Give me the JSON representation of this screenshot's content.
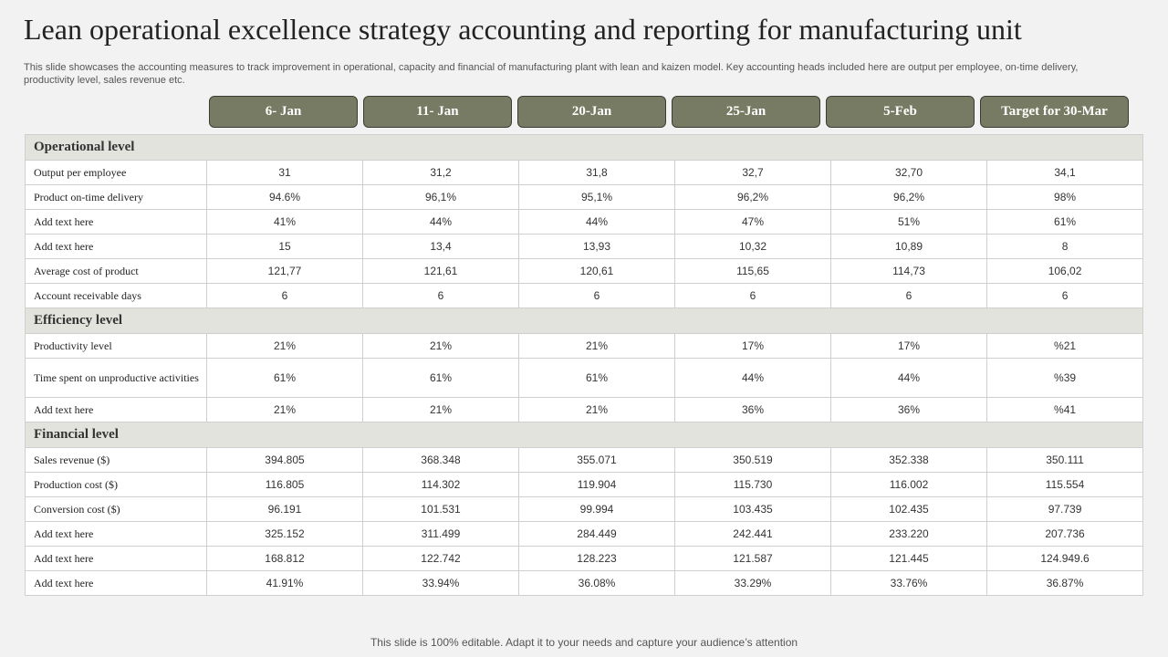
{
  "title": "Lean operational excellence strategy accounting and reporting for manufacturing unit",
  "subtitle": "This slide showcases the accounting measures to track improvement in operational, capacity and financial of manufacturing plant with lean and kaizen model. Key accounting heads included here are output per employee, on-time delivery, productivity level, sales revenue etc.",
  "headers": [
    "6- Jan",
    "11- Jan",
    "20-Jan",
    "25-Jan",
    "5-Feb",
    "Target for 30-Mar"
  ],
  "sections": {
    "operational": {
      "title": "Operational  level",
      "rows": [
        {
          "label": "Output per employee",
          "values": [
            "31",
            "31,2",
            "31,8",
            "32,7",
            "32,70",
            "34,1"
          ]
        },
        {
          "label": "Product on-time delivery",
          "values": [
            "94.6%",
            "96,1%",
            "95,1%",
            "96,2%",
            "96,2%",
            "98%"
          ]
        },
        {
          "label": "Add text  here",
          "values": [
            "41%",
            "44%",
            "44%",
            "47%",
            "51%",
            "61%"
          ]
        },
        {
          "label": "Add text  here",
          "values": [
            "15",
            "13,4",
            "13,93",
            "10,32",
            "10,89",
            "8"
          ]
        },
        {
          "label": "Average cost of product",
          "values": [
            "121,77",
            "121,61",
            "120,61",
            "115,65",
            "114,73",
            "106,02"
          ]
        },
        {
          "label": "Account receivable days",
          "values": [
            "6",
            "6",
            "6",
            "6",
            "6",
            "6"
          ]
        }
      ]
    },
    "efficiency": {
      "title": "Efficiency  level",
      "rows": [
        {
          "label": "Productivity level",
          "values": [
            "21%",
            "21%",
            "21%",
            "17%",
            "17%",
            "%21"
          ]
        },
        {
          "label": "Time  spent on unproductive activities",
          "values": [
            "61%",
            "61%",
            "61%",
            "44%",
            "44%",
            "%39"
          ]
        },
        {
          "label": "Add text  here",
          "values": [
            "21%",
            "21%",
            "21%",
            "36%",
            "36%",
            "%41"
          ]
        }
      ]
    },
    "financial": {
      "title": "Financial  level",
      "rows": [
        {
          "label": "Sales revenue ($)",
          "values": [
            "394.805",
            "368.348",
            "355.071",
            "350.519",
            "352.338",
            "350.111"
          ]
        },
        {
          "label": "Production cost ($)",
          "values": [
            "116.805",
            "114.302",
            "119.904",
            "115.730",
            "116.002",
            "115.554"
          ]
        },
        {
          "label": "Conversion cost ($)",
          "values": [
            "96.191",
            "101.531",
            "99.994",
            "103.435",
            "102.435",
            "97.739"
          ]
        },
        {
          "label": "Add text  here",
          "values": [
            "325.152",
            "311.499",
            "284.449",
            "242.441",
            "233.220",
            "207.736"
          ]
        },
        {
          "label": "Add text  here",
          "values": [
            "168.812",
            "122.742",
            "128.223",
            "121.587",
            "121.445",
            "124.949.6"
          ]
        },
        {
          "label": "Add text  here",
          "values": [
            "41.91%",
            "33.94%",
            "36.08%",
            "33.29%",
            "33.76%",
            "36.87%"
          ]
        }
      ]
    }
  },
  "footer": "This slide is 100% editable. Adapt it to your needs and capture your audience’s attention",
  "colors": {
    "header_bg": "#787b63",
    "section_bg": "#e3e3de",
    "page_bg": "#f2f2f2"
  }
}
